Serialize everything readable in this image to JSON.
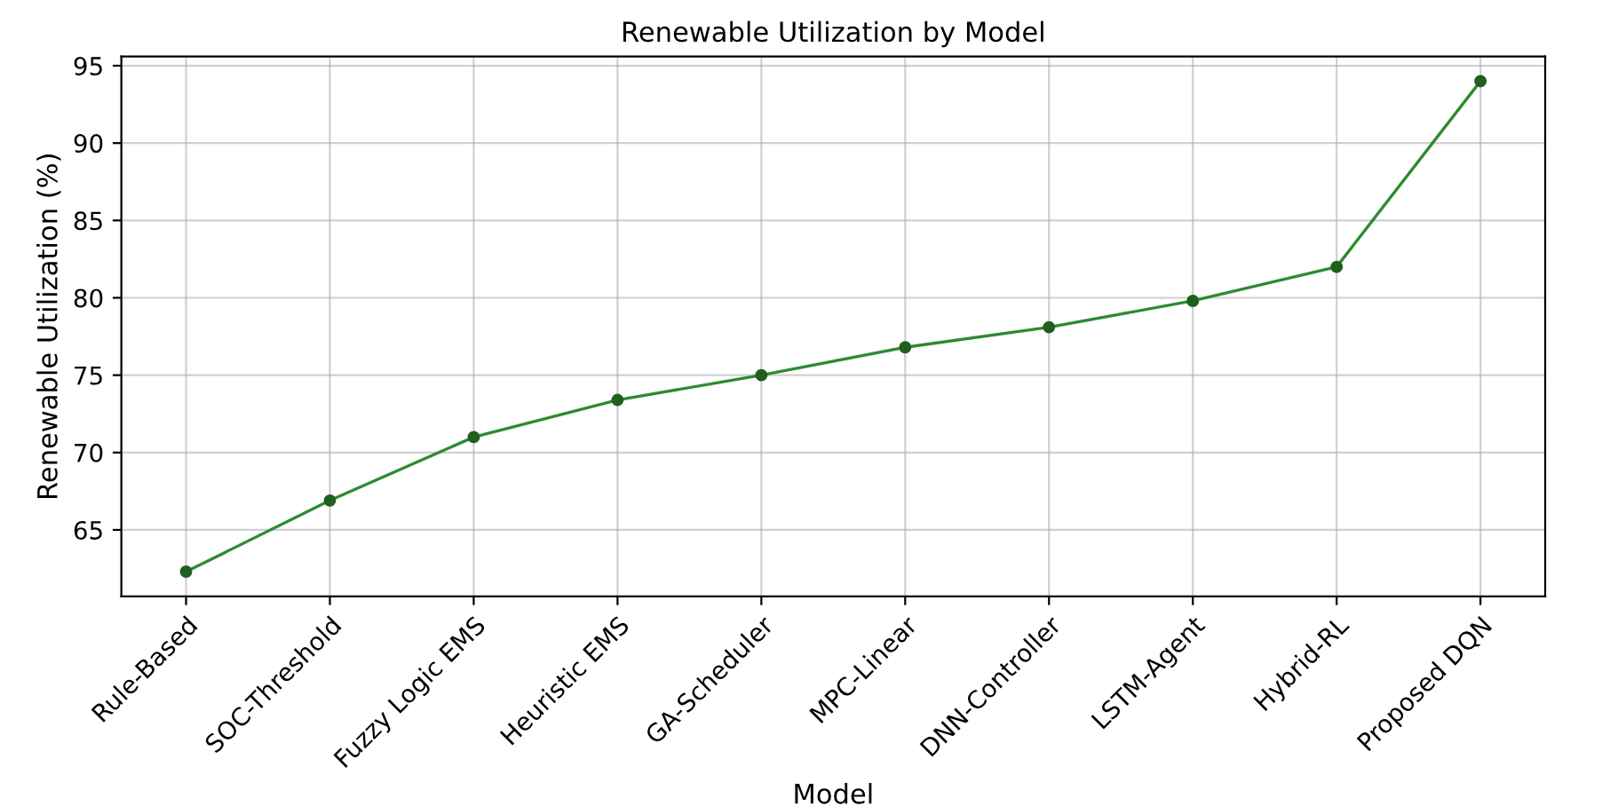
{
  "chart_data": {
    "type": "line",
    "title": "Renewable Utilization by Model",
    "xlabel": "Model",
    "ylabel": "Renewable Utilization (%)",
    "categories": [
      "Rule-Based",
      "SOC-Threshold",
      "Fuzzy Logic EMS",
      "Heuristic EMS",
      "GA-Scheduler",
      "MPC-Linear",
      "DNN-Controller",
      "LSTM-Agent",
      "Hybrid-RL",
      "Proposed DQN"
    ],
    "series": [
      {
        "color": "#2e8b2e",
        "values": [
          62.3,
          66.9,
          71.0,
          73.4,
          75.0,
          76.8,
          78.1,
          79.8,
          82.0,
          94.0
        ]
      }
    ],
    "ylim": [
      60.7,
      95.6
    ],
    "yticks": [
      65,
      70,
      75,
      80,
      85,
      90,
      95
    ],
    "grid": true,
    "marker": "circle",
    "line_style": "solid"
  }
}
